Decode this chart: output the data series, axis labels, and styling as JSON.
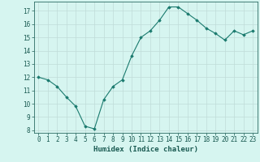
{
  "x": [
    0,
    1,
    2,
    3,
    4,
    5,
    6,
    7,
    8,
    9,
    10,
    11,
    12,
    13,
    14,
    15,
    16,
    17,
    18,
    19,
    20,
    21,
    22,
    23
  ],
  "y": [
    12.0,
    11.8,
    11.3,
    10.5,
    9.8,
    8.3,
    8.1,
    10.3,
    11.3,
    11.8,
    13.6,
    15.0,
    15.5,
    16.3,
    17.3,
    17.3,
    16.8,
    16.3,
    15.7,
    15.3,
    14.8,
    15.5,
    15.2,
    15.5
  ],
  "xlabel": "Humidex (Indice chaleur)",
  "xlim": [
    -0.5,
    23.5
  ],
  "ylim": [
    7.8,
    17.7
  ],
  "yticks": [
    8,
    9,
    10,
    11,
    12,
    13,
    14,
    15,
    16,
    17
  ],
  "xticks": [
    0,
    1,
    2,
    3,
    4,
    5,
    6,
    7,
    8,
    9,
    10,
    11,
    12,
    13,
    14,
    15,
    16,
    17,
    18,
    19,
    20,
    21,
    22,
    23
  ],
  "xtick_labels": [
    "0",
    "1",
    "2",
    "3",
    "4",
    "5",
    "6",
    "7",
    "8",
    "9",
    "10",
    "11",
    "12",
    "13",
    "14",
    "15",
    "16",
    "17",
    "18",
    "19",
    "20",
    "21",
    "22",
    "23"
  ],
  "line_color": "#1a7a6e",
  "marker": "D",
  "marker_size": 1.8,
  "bg_color": "#d6f5f0",
  "grid_color": "#c0dcd8",
  "axis_color": "#2a6b62",
  "tick_color": "#1a5a52",
  "label_color": "#1a5a52",
  "label_fontsize": 6.5,
  "tick_fontsize": 5.5
}
